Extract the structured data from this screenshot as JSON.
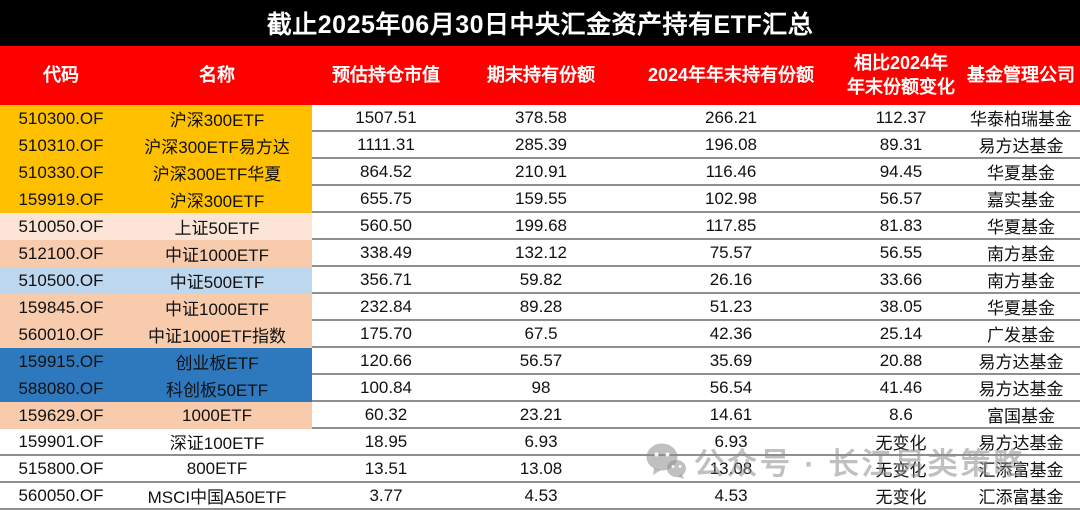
{
  "title": "截止2025年06月30日中央汇金资产持有ETF汇总",
  "header": {
    "columns": [
      "代码",
      "名称",
      "预估持仓市值",
      "期末持有份额",
      "2024年年末持有份额",
      "相比2024年\n年末份额变化",
      "基金管理公司"
    ]
  },
  "rows": [
    {
      "code": "510300.OF",
      "name": "沪深300ETF",
      "market_value": "1507.51",
      "shares_end": "378.58",
      "shares_2024": "266.21",
      "change": "112.37",
      "company": "华泰柏瑞基金",
      "highlight": "gold"
    },
    {
      "code": "510310.OF",
      "name": "沪深300ETF易方达",
      "market_value": "1111.31",
      "shares_end": "285.39",
      "shares_2024": "196.08",
      "change": "89.31",
      "company": "易方达基金",
      "highlight": "gold"
    },
    {
      "code": "510330.OF",
      "name": "沪深300ETF华夏",
      "market_value": "864.52",
      "shares_end": "210.91",
      "shares_2024": "116.46",
      "change": "94.45",
      "company": "华夏基金",
      "highlight": "gold"
    },
    {
      "code": "159919.OF",
      "name": "沪深300ETF",
      "market_value": "655.75",
      "shares_end": "159.55",
      "shares_2024": "102.98",
      "change": "56.57",
      "company": "嘉实基金",
      "highlight": "gold"
    },
    {
      "code": "510050.OF",
      "name": "上证50ETF",
      "market_value": "560.50",
      "shares_end": "199.68",
      "shares_2024": "117.85",
      "change": "81.83",
      "company": "华夏基金",
      "highlight": "peach_light"
    },
    {
      "code": "512100.OF",
      "name": "中证1000ETF",
      "market_value": "338.49",
      "shares_end": "132.12",
      "shares_2024": "75.57",
      "change": "56.55",
      "company": "南方基金",
      "highlight": "peach"
    },
    {
      "code": "510500.OF",
      "name": "中证500ETF",
      "market_value": "356.71",
      "shares_end": "59.82",
      "shares_2024": "26.16",
      "change": "33.66",
      "company": "南方基金",
      "highlight": "blue_light"
    },
    {
      "code": "159845.OF",
      "name": "中证1000ETF",
      "market_value": "232.84",
      "shares_end": "89.28",
      "shares_2024": "51.23",
      "change": "38.05",
      "company": "华夏基金",
      "highlight": "peach"
    },
    {
      "code": "560010.OF",
      "name": "中证1000ETF指数",
      "market_value": "175.70",
      "shares_end": "67.5",
      "shares_2024": "42.36",
      "change": "25.14",
      "company": "广发基金",
      "highlight": "peach"
    },
    {
      "code": "159915.OF",
      "name": "创业板ETF",
      "market_value": "120.66",
      "shares_end": "56.57",
      "shares_2024": "35.69",
      "change": "20.88",
      "company": "易方达基金",
      "highlight": "blue"
    },
    {
      "code": "588080.OF",
      "name": "科创板50ETF",
      "market_value": "100.84",
      "shares_end": "98",
      "shares_2024": "56.54",
      "change": "41.46",
      "company": "易方达基金",
      "highlight": "blue"
    },
    {
      "code": "159629.OF",
      "name": "1000ETF",
      "market_value": "60.32",
      "shares_end": "23.21",
      "shares_2024": "14.61",
      "change": "8.6",
      "company": "富国基金",
      "highlight": "peach"
    },
    {
      "code": "159901.OF",
      "name": "深证100ETF",
      "market_value": "18.95",
      "shares_end": "6.93",
      "shares_2024": "6.93",
      "change": "无变化",
      "company": "易方达基金",
      "highlight": "white"
    },
    {
      "code": "515800.OF",
      "name": "800ETF",
      "market_value": "13.51",
      "shares_end": "13.08",
      "shares_2024": "13.08",
      "change": "无变化",
      "company": "汇添富基金",
      "highlight": "white"
    },
    {
      "code": "560050.OF",
      "name": "MSCI中国A50ETF",
      "market_value": "3.77",
      "shares_end": "4.53",
      "shares_2024": "4.53",
      "change": "无变化",
      "company": "汇添富基金",
      "highlight": "white"
    }
  ],
  "watermark": {
    "icon": "wechat-icon",
    "text": "公众号 · 长江另类策略"
  },
  "colors": {
    "title_bg": "#000000",
    "header_bg": "#FE0000",
    "gridline": "#8F8F8F",
    "gold": "#FFC000",
    "peach_light": "#FCE4D6",
    "peach": "#F8CBAD",
    "blue_light": "#BDD7EE",
    "blue": "#2E78BE",
    "white": "#FFFFFF"
  },
  "chart_data": {
    "type": "table",
    "title": "截止2025年06月30日中央汇金资产持有ETF汇总",
    "columns": [
      "代码",
      "名称",
      "预估持仓市值",
      "期末持有份额",
      "2024年年末持有份额",
      "相比2024年年末份额变化",
      "基金管理公司"
    ],
    "rows": [
      [
        "510300.OF",
        "沪深300ETF",
        1507.51,
        378.58,
        266.21,
        "112.37",
        "华泰柏瑞基金"
      ],
      [
        "510310.OF",
        "沪深300ETF易方达",
        1111.31,
        285.39,
        196.08,
        "89.31",
        "易方达基金"
      ],
      [
        "510330.OF",
        "沪深300ETF华夏",
        864.52,
        210.91,
        116.46,
        "94.45",
        "华夏基金"
      ],
      [
        "159919.OF",
        "沪深300ETF",
        655.75,
        159.55,
        102.98,
        "56.57",
        "嘉实基金"
      ],
      [
        "510050.OF",
        "上证50ETF",
        560.5,
        199.68,
        117.85,
        "81.83",
        "华夏基金"
      ],
      [
        "512100.OF",
        "中证1000ETF",
        338.49,
        132.12,
        75.57,
        "56.55",
        "南方基金"
      ],
      [
        "510500.OF",
        "中证500ETF",
        356.71,
        59.82,
        26.16,
        "33.66",
        "南方基金"
      ],
      [
        "159845.OF",
        "中证1000ETF",
        232.84,
        89.28,
        51.23,
        "38.05",
        "华夏基金"
      ],
      [
        "560010.OF",
        "中证1000ETF指数",
        175.7,
        67.5,
        42.36,
        "25.14",
        "广发基金"
      ],
      [
        "159915.OF",
        "创业板ETF",
        120.66,
        56.57,
        35.69,
        "20.88",
        "易方达基金"
      ],
      [
        "588080.OF",
        "科创板50ETF",
        100.84,
        98,
        56.54,
        "41.46",
        "易方达基金"
      ],
      [
        "159629.OF",
        "1000ETF",
        60.32,
        23.21,
        14.61,
        "8.6",
        "富国基金"
      ],
      [
        "159901.OF",
        "深证100ETF",
        18.95,
        6.93,
        6.93,
        "无变化",
        "易方达基金"
      ],
      [
        "515800.OF",
        "800ETF",
        13.51,
        13.08,
        13.08,
        "无变化",
        "汇添富基金"
      ],
      [
        "560050.OF",
        "MSCI中国A50ETF",
        3.77,
        4.53,
        4.53,
        "无变化",
        "汇添富基金"
      ]
    ]
  }
}
